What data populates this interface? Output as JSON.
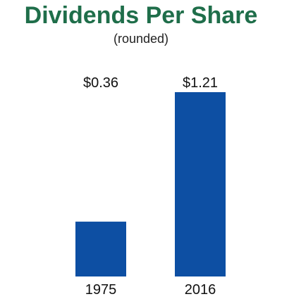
{
  "header": {
    "title": "Dividends Per Share",
    "subtitle": "(rounded)"
  },
  "colors": {
    "title": "#1f6e4a",
    "bar": "#0d4fa3"
  },
  "chart_data": {
    "type": "bar",
    "title": "Dividends Per Share",
    "subtitle": "(rounded)",
    "categories": [
      "1975",
      "2016"
    ],
    "values": [
      0.36,
      1.21
    ],
    "data_labels": [
      "$0.36",
      "$1.21"
    ],
    "xlabel": "",
    "ylabel": "",
    "ylim": [
      0,
      1.21
    ],
    "grid": false,
    "legend": "none"
  }
}
